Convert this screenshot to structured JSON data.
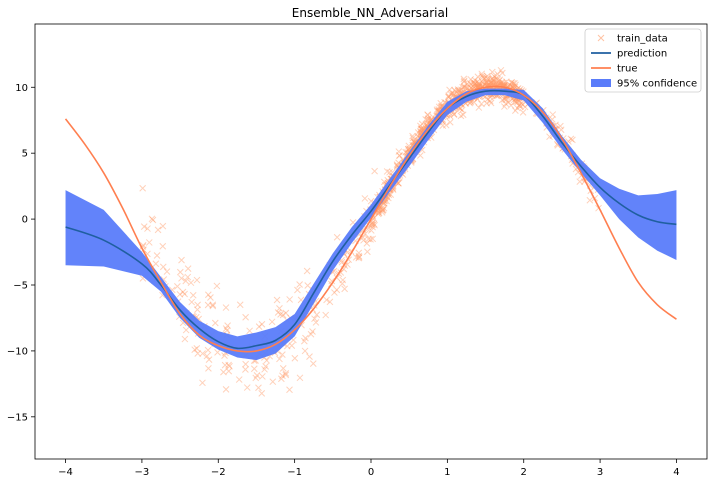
{
  "chart_data": {
    "type": "line",
    "title": "Ensemble_NN_Adversarial",
    "xlabel": "",
    "ylabel": "",
    "xlim": [
      -4.4,
      4.4
    ],
    "ylim": [
      -18.2,
      14.8
    ],
    "xticks": [
      -4,
      -3,
      -2,
      -1,
      0,
      1,
      2,
      3,
      4
    ],
    "yticks": [
      -15,
      -10,
      -5,
      0,
      5,
      10
    ],
    "xtick_labels": [
      "−4",
      "−3",
      "−2",
      "−1",
      "0",
      "1",
      "2",
      "3",
      "4"
    ],
    "ytick_labels": [
      "−15",
      "−10",
      "−5",
      "0",
      "5",
      "10"
    ],
    "grid": false,
    "legend_position": "top-right",
    "legend": [
      {
        "name": "train_data",
        "kind": "marker",
        "color": "#ff9966"
      },
      {
        "name": "prediction",
        "kind": "line",
        "color": "#1f5fa0"
      },
      {
        "name": "true",
        "kind": "line",
        "color": "#ff7f50"
      },
      {
        "name": "95% confidence",
        "kind": "patch",
        "color": "#5a7cfa"
      }
    ],
    "series": [
      {
        "name": "prediction",
        "color": "#1f5fa0",
        "x": [
          -4,
          -3.5,
          -3,
          -2.75,
          -2.5,
          -2.25,
          -2,
          -1.75,
          -1.5,
          -1.25,
          -1,
          -0.75,
          -0.5,
          -0.25,
          0,
          0.25,
          0.5,
          0.75,
          1,
          1.25,
          1.5,
          1.75,
          2,
          2.25,
          2.5,
          2.75,
          3,
          3.25,
          3.5,
          3.75,
          4
        ],
        "y": [
          -0.6,
          -1.6,
          -3.4,
          -5.0,
          -6.9,
          -8.3,
          -9.3,
          -9.8,
          -9.6,
          -9.2,
          -8.0,
          -5.6,
          -3.2,
          -1.2,
          0.6,
          2.6,
          4.6,
          6.6,
          8.4,
          9.3,
          9.7,
          9.7,
          9.4,
          7.8,
          5.8,
          4.0,
          2.4,
          1.2,
          0.3,
          -0.2,
          -0.4
        ]
      },
      {
        "name": "true",
        "color": "#ff7f50",
        "x": [
          -4,
          -3.75,
          -3.5,
          -3.25,
          -3,
          -2.75,
          -2.5,
          -2.25,
          -2,
          -1.75,
          -1.5,
          -1.25,
          -1,
          -0.75,
          -0.5,
          -0.25,
          0,
          0.25,
          0.5,
          0.75,
          1,
          1.25,
          1.5,
          1.75,
          2,
          2.25,
          2.5,
          2.75,
          3,
          3.25,
          3.5,
          3.75,
          4
        ],
        "y": [
          7.6,
          5.7,
          3.5,
          0.8,
          -2.2,
          -4.8,
          -7.2,
          -8.8,
          -9.6,
          -10.0,
          -10.0,
          -9.5,
          -8.4,
          -6.8,
          -4.8,
          -2.5,
          0.0,
          2.5,
          4.8,
          6.8,
          8.4,
          9.5,
          10.0,
          10.0,
          9.4,
          8.1,
          6.1,
          3.5,
          0.7,
          -2.2,
          -4.8,
          -6.5,
          -7.6
        ]
      }
    ],
    "confidence_band": {
      "name": "95% confidence",
      "color": "#5a7cfa",
      "x": [
        -4,
        -3.5,
        -3,
        -2.75,
        -2.5,
        -2.25,
        -2,
        -1.75,
        -1.5,
        -1.25,
        -1,
        -0.75,
        -0.5,
        -0.25,
        0,
        0.25,
        0.5,
        0.75,
        1,
        1.25,
        1.5,
        1.75,
        2,
        2.25,
        2.5,
        2.75,
        3,
        3.25,
        3.5,
        3.75,
        4
      ],
      "lower": [
        -3.5,
        -3.6,
        -4.3,
        -5.5,
        -7.5,
        -9.0,
        -9.9,
        -10.5,
        -10.7,
        -10.2,
        -8.9,
        -6.4,
        -3.9,
        -1.8,
        0.1,
        2.1,
        4.0,
        6.0,
        7.9,
        8.9,
        9.4,
        9.4,
        9.0,
        7.3,
        5.3,
        3.5,
        1.8,
        0.0,
        -1.4,
        -2.4,
        -3.1
      ],
      "upper": [
        2.2,
        0.7,
        -2.5,
        -4.4,
        -6.3,
        -7.7,
        -8.5,
        -8.9,
        -8.6,
        -8.2,
        -7.2,
        -4.9,
        -2.6,
        -0.6,
        1.1,
        3.1,
        5.1,
        7.1,
        8.9,
        9.7,
        9.9,
        9.9,
        9.8,
        8.4,
        6.3,
        4.5,
        3.1,
        2.3,
        1.8,
        1.9,
        2.2
      ]
    },
    "scatter": {
      "name": "train_data",
      "marker": "x",
      "color": "#ff9966",
      "clusters": [
        {
          "x_range": [
            -3.0,
            -0.7
          ],
          "noise": 3.3,
          "count": 170
        },
        {
          "x_range": [
            -0.6,
            0.1
          ],
          "noise": 2.0,
          "count": 60
        },
        {
          "x_range": [
            0.0,
            2.0
          ],
          "noise": 0.9,
          "count": 700
        },
        {
          "x_range": [
            2.0,
            3.0
          ],
          "noise": 0.9,
          "count": 60
        }
      ]
    }
  }
}
